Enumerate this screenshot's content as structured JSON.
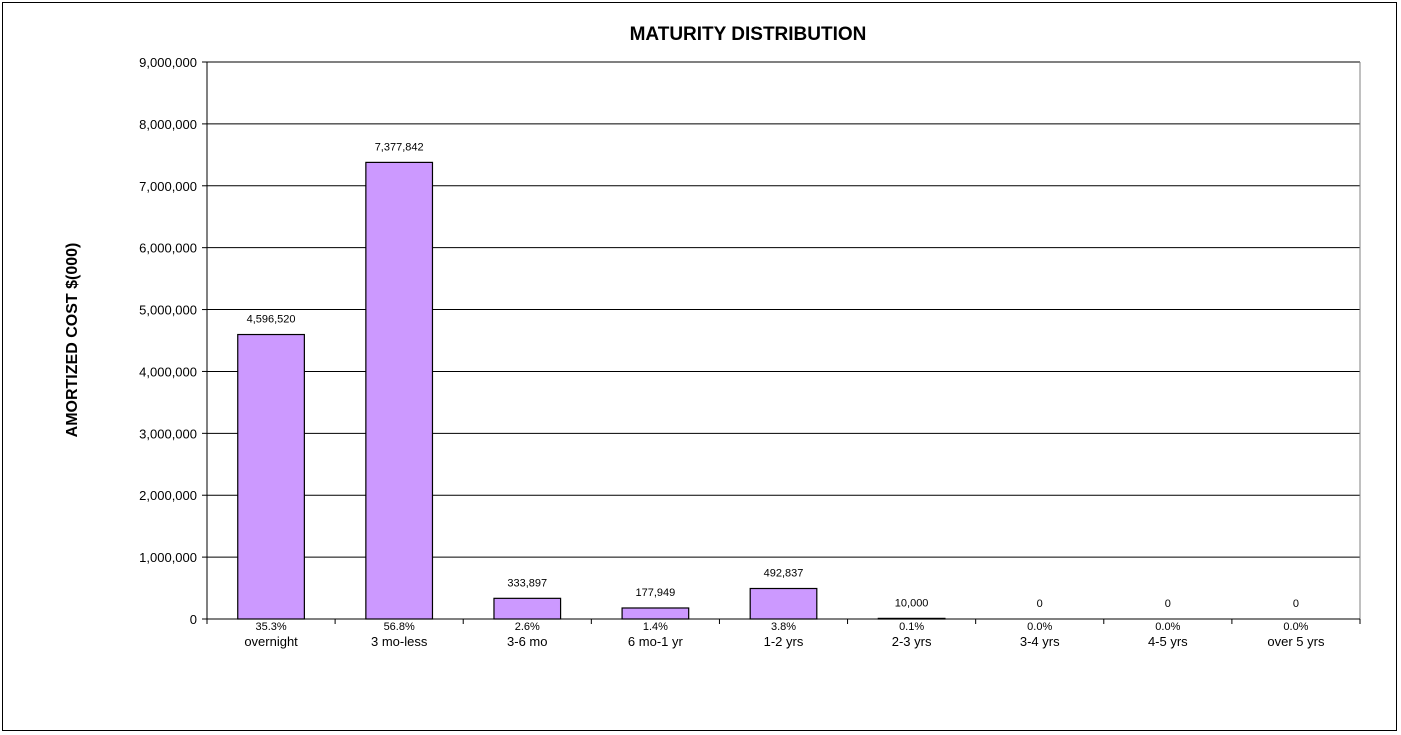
{
  "chart_data": {
    "type": "bar",
    "title": "MATURITY DISTRIBUTION",
    "ylabel": "AMORTIZED COST $(000)",
    "xlabel": "",
    "ylim": [
      0,
      9000000
    ],
    "yticks": [
      0,
      1000000,
      2000000,
      3000000,
      4000000,
      5000000,
      6000000,
      7000000,
      8000000,
      9000000
    ],
    "ytick_labels": [
      "0",
      "1,000,000",
      "2,000,000",
      "3,000,000",
      "4,000,000",
      "5,000,000",
      "6,000,000",
      "7,000,000",
      "8,000,000",
      "9,000,000"
    ],
    "grid": "horizontal",
    "bar_color": "#cc99ff",
    "categories": [
      "overnight",
      "3 mo-less",
      "3-6 mo",
      "6 mo-1 yr",
      "1-2 yrs",
      "2-3 yrs",
      "3-4 yrs",
      "4-5 yrs",
      "over 5 yrs"
    ],
    "values": [
      4596520,
      7377842,
      333897,
      177949,
      492837,
      10000,
      0,
      0,
      0
    ],
    "value_labels": [
      "4,596,520",
      "7,377,842",
      "333,897",
      "177,949",
      "492,837",
      "10,000",
      "0",
      "0",
      "0"
    ],
    "percent_labels": [
      "35.3%",
      "56.8%",
      "2.6%",
      "1.4%",
      "3.8%",
      "0.1%",
      "0.0%",
      "0.0%",
      "0.0%"
    ]
  }
}
